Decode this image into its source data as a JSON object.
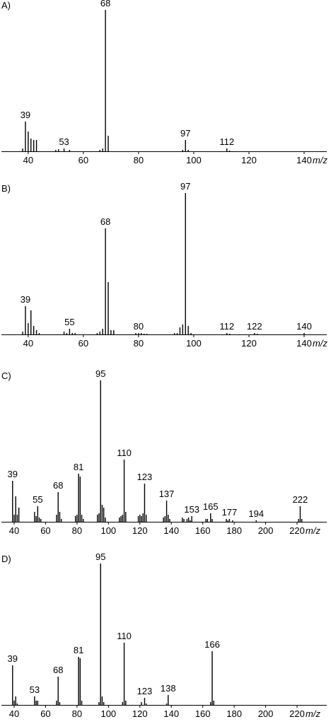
{
  "chart_data": [
    {
      "type": "bar",
      "title": "A)",
      "xlabel": "m/z",
      "color": "#000000",
      "x": [
        38,
        39,
        40,
        41,
        42,
        43,
        50,
        51,
        53,
        55,
        66,
        67,
        68,
        69,
        96,
        97,
        98,
        112,
        113
      ],
      "values": [
        2,
        21,
        14,
        9,
        8,
        8,
        1,
        1.5,
        2,
        1,
        1,
        2,
        100,
        11,
        1,
        8,
        1,
        2,
        0.5
      ],
      "peak_labels": [
        39,
        53,
        68,
        97,
        112
      ],
      "xlim": [
        30.3,
        148.2
      ],
      "xticks": [
        40,
        60,
        80,
        100,
        120,
        140
      ],
      "ylim": [
        0,
        100
      ]
    },
    {
      "type": "bar",
      "title": "B)",
      "xlabel": "m/z",
      "color": "#000000",
      "x": [
        38,
        39,
        40,
        41,
        42,
        43,
        44,
        53,
        54,
        55,
        56,
        57,
        65,
        66,
        67,
        68,
        69,
        70,
        71,
        79,
        80,
        81,
        82,
        83,
        93,
        94,
        95,
        96,
        97,
        98,
        99,
        112,
        113,
        122,
        123,
        140
      ],
      "values": [
        2,
        20,
        8,
        17,
        6,
        3,
        1,
        2,
        1,
        4,
        1,
        1,
        1,
        2,
        4,
        75,
        37,
        3,
        3,
        1,
        1,
        1,
        0.5,
        0.5,
        1,
        1,
        5,
        7,
        100,
        6,
        1,
        1,
        0.5,
        1,
        0.5,
        1
      ],
      "peak_labels": [
        39,
        55,
        68,
        80,
        97,
        112,
        122,
        140
      ],
      "xlim": [
        30.3,
        148.2
      ],
      "xticks": [
        40,
        60,
        80,
        100,
        120,
        140
      ],
      "ylim": [
        0,
        100
      ]
    },
    {
      "type": "bar",
      "title": "C)",
      "xlabel": "m/z",
      "color": "#000000",
      "x": [
        39,
        40,
        41,
        42,
        43,
        53,
        54,
        55,
        56,
        57,
        67,
        68,
        69,
        70,
        79,
        80,
        81,
        82,
        83,
        84,
        93,
        94,
        95,
        96,
        97,
        98,
        107,
        108,
        109,
        110,
        111,
        119,
        120,
        121,
        122,
        123,
        124,
        135,
        136,
        137,
        138,
        139,
        147,
        148,
        150,
        151,
        152,
        153,
        162,
        163,
        165,
        166,
        175,
        176,
        177,
        179,
        194,
        221,
        222,
        223
      ],
      "values": [
        29,
        5,
        18,
        5,
        10,
        7,
        4,
        11,
        3,
        2,
        5,
        21,
        7,
        2,
        4,
        5,
        34,
        32,
        5,
        2,
        5,
        6,
        100,
        12,
        10,
        3,
        3,
        4,
        5,
        44,
        7,
        4,
        5,
        4,
        6,
        27,
        5,
        3,
        4,
        15,
        5,
        2,
        3,
        2,
        2,
        3,
        1,
        4,
        2,
        2,
        6,
        2,
        2,
        1,
        2,
        1,
        1,
        2,
        11,
        2
      ],
      "peak_labels": [
        39,
        55,
        68,
        81,
        95,
        110,
        123,
        137,
        153,
        165,
        177,
        194,
        222
      ],
      "xlim": [
        31.9,
        238.9
      ],
      "xticks": [
        40,
        60,
        80,
        100,
        120,
        140,
        160,
        180,
        200,
        220
      ],
      "ylim": [
        0,
        100
      ]
    },
    {
      "type": "bar",
      "title": "D)",
      "xlabel": "m/z",
      "color": "#000000",
      "x": [
        39,
        40,
        41,
        42,
        53,
        54,
        55,
        67,
        68,
        69,
        81,
        82,
        83,
        94,
        95,
        96,
        97,
        109,
        110,
        111,
        121,
        123,
        124,
        137,
        138,
        165,
        166,
        167
      ],
      "values": [
        28,
        3,
        6,
        1,
        6,
        3,
        3,
        3,
        20,
        2,
        34,
        33,
        3,
        2,
        100,
        6,
        2,
        2,
        44,
        3,
        2,
        5,
        1,
        1,
        7,
        2,
        38,
        3
      ],
      "peak_labels": [
        39,
        53,
        68,
        81,
        95,
        110,
        123,
        138,
        166
      ],
      "xlim": [
        31.9,
        238.9
      ],
      "xticks": [
        40,
        60,
        80,
        100,
        120,
        140,
        160,
        180,
        200,
        220
      ],
      "ylim": [
        0,
        100
      ]
    }
  ]
}
